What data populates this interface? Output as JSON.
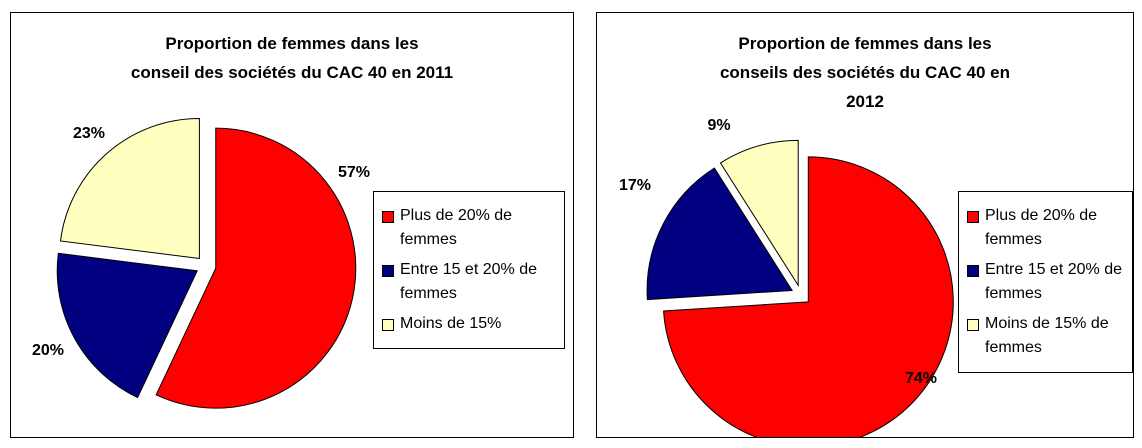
{
  "chart_data": [
    {
      "type": "pie",
      "title": [
        "Proportion de femmes dans les",
        "conseil des sociétés du CAC 40 en 2011"
      ],
      "categories": [
        "Plus de 20% de femmes",
        "Entre 15 et 20% de femmes",
        "Moins de 15%"
      ],
      "values": [
        57,
        20,
        23
      ],
      "value_labels": [
        "57%",
        "20%",
        "23%"
      ],
      "colors": [
        "#ff0000",
        "#000080",
        "#ffffc0"
      ],
      "legend": "right"
    },
    {
      "type": "pie",
      "title": [
        "Proportion de femmes dans les",
        "conseils des sociétés du CAC 40 en",
        "2012"
      ],
      "categories": [
        "Plus de 20% de femmes",
        "Entre 15 et 20% de femmes",
        "Moins de 15% de femmes"
      ],
      "values": [
        74,
        17,
        9
      ],
      "value_labels": [
        "74%",
        "17%",
        "9%"
      ],
      "colors": [
        "#ff0000",
        "#000080",
        "#ffffc0"
      ],
      "legend": "right"
    }
  ]
}
